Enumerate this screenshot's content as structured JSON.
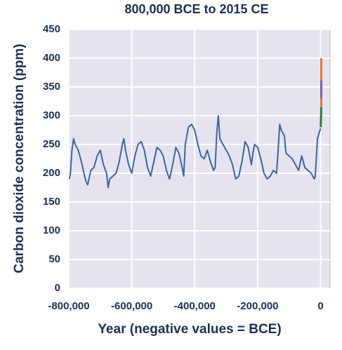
{
  "chart_data": {
    "type": "line",
    "title": "800,000 BCE to 2015 CE",
    "xlabel": "Year (negative values = BCE)",
    "ylabel": "Carbon dioxide concentration (ppm)",
    "xlim": [
      -800000,
      30000
    ],
    "xticks": [
      {
        "value": -800000,
        "label": "-800,000"
      },
      {
        "value": -600000,
        "label": "-600,000"
      },
      {
        "value": -400000,
        "label": "-400,000"
      },
      {
        "value": -200000,
        "label": "-200,000"
      },
      0
    ],
    "ylim": [
      0,
      450
    ],
    "yticks": [
      0,
      50,
      100,
      150,
      200,
      250,
      300,
      350,
      400,
      450
    ],
    "grid": true,
    "series": [
      {
        "color": "#3b66a3",
        "x": [
          -798000,
          -795000,
          -790000,
          -785000,
          -780000,
          -770000,
          -760000,
          -750000,
          -745000,
          -740000,
          -730000,
          -720000,
          -710000,
          -700000,
          -690000,
          -680000,
          -675000,
          -670000,
          -660000,
          -650000,
          -640000,
          -630000,
          -625000,
          -620000,
          -610000,
          -600000,
          -590000,
          -580000,
          -570000,
          -560000,
          -550000,
          -540000,
          -530000,
          -520000,
          -510000,
          -500000,
          -490000,
          -480000,
          -470000,
          -460000,
          -450000,
          -440000,
          -435000,
          -430000,
          -420000,
          -410000,
          -400000,
          -390000,
          -380000,
          -370000,
          -360000,
          -350000,
          -340000,
          -335000,
          -330000,
          -325000,
          -320000,
          -310000,
          -300000,
          -290000,
          -280000,
          -270000,
          -260000,
          -250000,
          -240000,
          -230000,
          -220000,
          -215000,
          -210000,
          -200000,
          -190000,
          -180000,
          -170000,
          -160000,
          -150000,
          -140000,
          -135000,
          -130000,
          -125000,
          -115000,
          -110000,
          -100000,
          -90000,
          -80000,
          -70000,
          -60000,
          -50000,
          -40000,
          -30000,
          -20000,
          -17000,
          -10000,
          -5000,
          0
        ],
        "values": [
          190,
          200,
          240,
          260,
          250,
          240,
          220,
          195,
          185,
          180,
          205,
          210,
          230,
          240,
          215,
          200,
          175,
          190,
          195,
          200,
          220,
          250,
          260,
          240,
          215,
          200,
          230,
          250,
          255,
          240,
          210,
          195,
          220,
          245,
          240,
          230,
          205,
          190,
          215,
          245,
          235,
          210,
          195,
          250,
          280,
          285,
          275,
          250,
          230,
          225,
          240,
          220,
          205,
          210,
          270,
          300,
          260,
          250,
          240,
          230,
          215,
          190,
          195,
          220,
          255,
          245,
          215,
          235,
          250,
          245,
          225,
          200,
          190,
          195,
          205,
          200,
          240,
          285,
          275,
          265,
          235,
          230,
          225,
          215,
          205,
          230,
          210,
          205,
          200,
          190,
          195,
          260,
          270,
          278
        ]
      },
      {
        "color": "#2e7d32",
        "x": [
          500,
          1958
        ],
        "values": [
          280,
          315
        ]
      },
      {
        "color": "#e8762c",
        "x": [
          1958,
          1975
        ],
        "values": [
          315,
          330
        ]
      },
      {
        "color": "#7b5ea7",
        "x": [
          1975,
          1995
        ],
        "values": [
          330,
          362
        ]
      },
      {
        "color": "#e8762c",
        "x": [
          1995,
          2015
        ],
        "values": [
          362,
          400
        ]
      }
    ]
  }
}
